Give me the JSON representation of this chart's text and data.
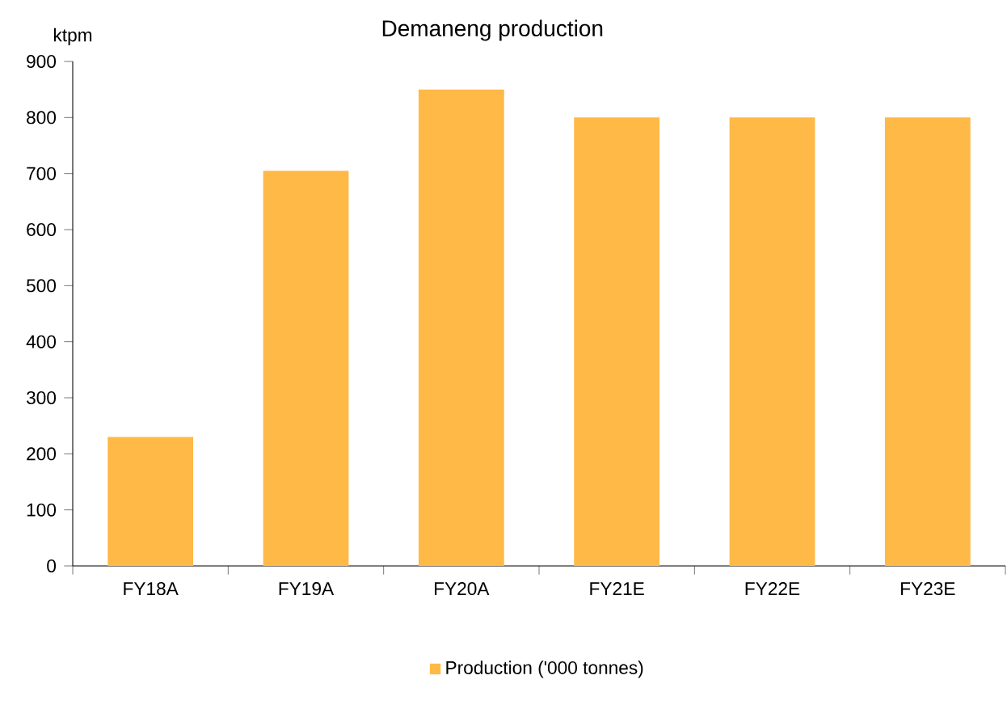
{
  "chart_data": {
    "type": "bar",
    "title": "Demaneng production",
    "ylabel": "ktpm",
    "categories": [
      "FY18A",
      "FY19A",
      "FY20A",
      "FY21E",
      "FY22E",
      "FY23E"
    ],
    "series": [
      {
        "name": "Production ('000 tonnes)",
        "color": "#ffb946",
        "values": [
          230,
          705,
          850,
          800,
          800,
          800
        ]
      }
    ],
    "ylim": [
      0,
      900
    ],
    "yticks": [
      0,
      100,
      200,
      300,
      400,
      500,
      600,
      700,
      800,
      900
    ],
    "legend": "bottom"
  }
}
